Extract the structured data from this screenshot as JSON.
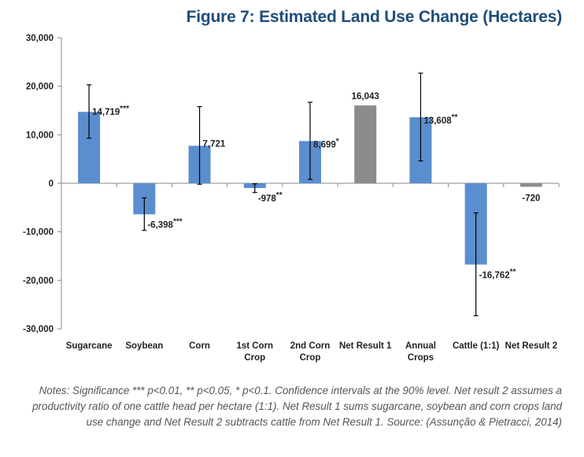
{
  "chart_data": {
    "type": "bar",
    "title": "Figure 7: Estimated Land Use Change (Hectares)",
    "xlabel": "",
    "ylabel": "",
    "ylim": [
      -30000,
      30000
    ],
    "yticks": [
      30000,
      20000,
      10000,
      0,
      -10000,
      -20000,
      -30000
    ],
    "ytick_labels": [
      "30,000",
      "20,000",
      "10,000",
      "0",
      "-10,000",
      "-20,000",
      "-30,000"
    ],
    "grid": false,
    "legend": "none",
    "categories": [
      [
        "Sugarcane"
      ],
      [
        "Soybean"
      ],
      [
        "Corn"
      ],
      [
        "1st Corn",
        "Crop"
      ],
      [
        "2nd Corn",
        "Crop"
      ],
      [
        "Net  Result 1"
      ],
      [
        "Annual",
        "Crops"
      ],
      [
        "Cattle (1:1)"
      ],
      [
        "Net Result 2"
      ]
    ],
    "values": [
      14719,
      -6398,
      7721,
      -978,
      8699,
      16043,
      13608,
      -16762,
      -720
    ],
    "value_labels": [
      "14,719",
      "-6,398",
      "7,721",
      "-978",
      "8,699",
      "16,043",
      "13,608",
      "-16,762",
      "-720"
    ],
    "significance": [
      "***",
      "***",
      "",
      "**",
      "*",
      "",
      "**",
      "**",
      ""
    ],
    "ci_low": [
      9300,
      -9700,
      -200,
      -1900,
      800,
      null,
      4600,
      -27300,
      null
    ],
    "ci_high": [
      20300,
      -3000,
      15800,
      -100,
      16700,
      null,
      22700,
      -6100,
      null
    ],
    "colors": [
      "#5B8ECF",
      "#5B8ECF",
      "#5B8ECF",
      "#5B8ECF",
      "#5B8ECF",
      "#8C8C8C",
      "#5B8ECF",
      "#5B8ECF",
      "#8C8C8C"
    ],
    "bar_color_default": "#5B8ECF",
    "bar_color_net": "#8C8C8C"
  },
  "notes": "Notes: Significance *** p<0.01, ** p<0.05, * p<0.1. Confidence intervals at the 90% level. Net result 2 assumes a productivity ratio of one cattle head per hectare (1:1). Net Result 1 sums sugarcane, soybean and corn crops land use change and Net Result 2 subtracts cattle from Net Result 1. Source: (Assunção & Pietracci, 2014)"
}
